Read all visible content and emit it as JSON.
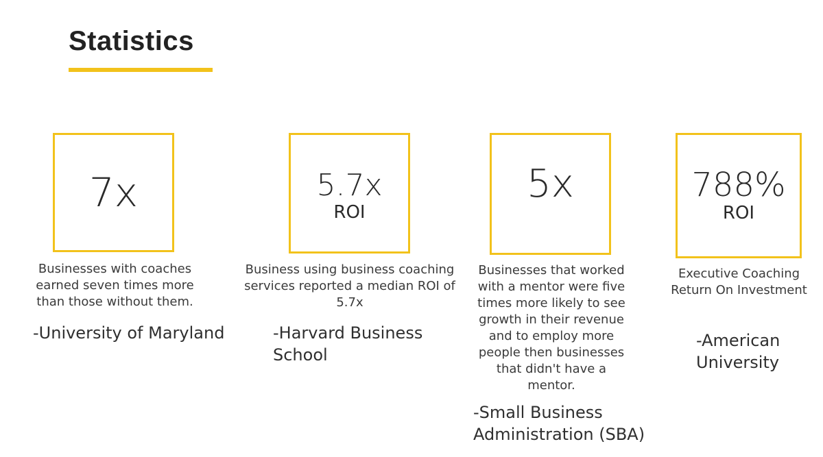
{
  "page": {
    "title": "Statistics"
  },
  "colors": {
    "accent": "#f2c21b",
    "text": "#2f2f2f"
  },
  "stats": [
    {
      "value": "7x",
      "unit": "",
      "description": "Businesses with coaches earned seven times more than those without them.",
      "source": "-University of Maryland"
    },
    {
      "value": "5.7x",
      "unit": "ROI",
      "description": "Business using business coaching services reported a median ROI of 5.7x",
      "source": "-Harvard Business School"
    },
    {
      "value": "5x",
      "unit": "",
      "description": "Businesses that worked with a mentor were five times more likely to see growth in their revenue and to employ more people then businesses that didn't have a mentor.",
      "source": "-Small Business Administration (SBA)"
    },
    {
      "value": "788%",
      "unit": "ROI",
      "description": "Executive Coaching Return On Investment",
      "source": "-American University"
    }
  ]
}
